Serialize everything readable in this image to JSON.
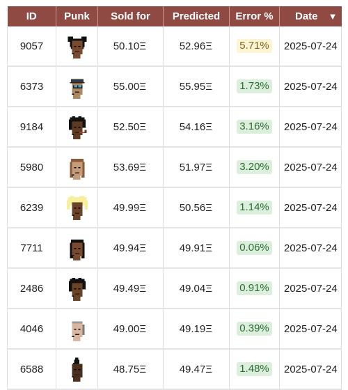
{
  "table": {
    "headers": {
      "id": "ID",
      "punk": "Punk",
      "sold": "Sold for",
      "predicted": "Predicted",
      "error": "Error %",
      "date": "Date",
      "sort_icon": "triangle-down-icon"
    },
    "rows": [
      {
        "id": "9057",
        "punk": "punk-9057",
        "sold": "50.10Ξ",
        "predicted": "52.96Ξ",
        "error": "5.71%",
        "error_level": "warn",
        "date": "2025-07-24"
      },
      {
        "id": "6373",
        "punk": "punk-6373",
        "sold": "55.00Ξ",
        "predicted": "55.95Ξ",
        "error": "1.73%",
        "error_level": "good",
        "date": "2025-07-24"
      },
      {
        "id": "9184",
        "punk": "punk-9184",
        "sold": "52.50Ξ",
        "predicted": "54.16Ξ",
        "error": "3.16%",
        "error_level": "good",
        "date": "2025-07-24"
      },
      {
        "id": "5980",
        "punk": "punk-5980",
        "sold": "53.69Ξ",
        "predicted": "51.97Ξ",
        "error": "3.20%",
        "error_level": "good",
        "date": "2025-07-24"
      },
      {
        "id": "6239",
        "punk": "punk-6239",
        "sold": "49.99Ξ",
        "predicted": "50.56Ξ",
        "error": "1.14%",
        "error_level": "good",
        "date": "2025-07-24"
      },
      {
        "id": "7711",
        "punk": "punk-7711",
        "sold": "49.94Ξ",
        "predicted": "49.91Ξ",
        "error": "0.06%",
        "error_level": "good",
        "date": "2025-07-24"
      },
      {
        "id": "2486",
        "punk": "punk-2486",
        "sold": "49.49Ξ",
        "predicted": "49.04Ξ",
        "error": "0.91%",
        "error_level": "good",
        "date": "2025-07-24"
      },
      {
        "id": "4046",
        "punk": "punk-4046",
        "sold": "49.00Ξ",
        "predicted": "49.19Ξ",
        "error": "0.39%",
        "error_level": "good",
        "date": "2025-07-24"
      },
      {
        "id": "6588",
        "punk": "punk-6588",
        "sold": "48.75Ξ",
        "predicted": "49.47Ξ",
        "error": "1.48%",
        "error_level": "good",
        "date": "2025-07-24"
      }
    ]
  },
  "colors": {
    "header_bg": "#8f4a43",
    "warn_badge_bg": "#fcf4d3",
    "good_badge_bg": "#dcefdc"
  }
}
